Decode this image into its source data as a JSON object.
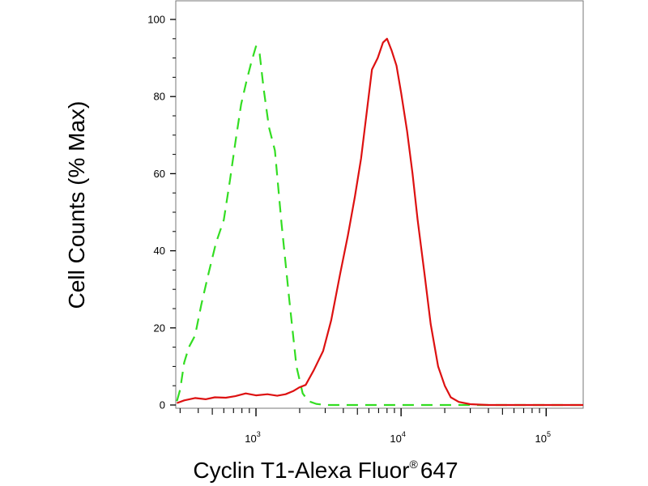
{
  "chart_data": {
    "type": "line",
    "title": "",
    "xlabel": "Cyclin T1-Alexa Fluor",
    "xlabel_mark": "®",
    "xlabel_suffix": "647",
    "ylabel": "Cell Counts (% Max)",
    "xscale": "log",
    "xlim": [
      280,
      180000
    ],
    "ylim": [
      0,
      100
    ],
    "x_ticks": [
      {
        "value": 1000,
        "base": "10",
        "exp": "3"
      },
      {
        "value": 10000,
        "base": "10",
        "exp": "4"
      },
      {
        "value": 100000,
        "base": "10",
        "exp": "5"
      }
    ],
    "y_ticks": [
      0,
      20,
      40,
      60,
      80,
      100
    ],
    "grid": false,
    "legend": "none",
    "series": [
      {
        "color": "#33dd22",
        "style": "dashed",
        "points": [
          [
            285,
            1
          ],
          [
            300,
            4
          ],
          [
            320,
            11
          ],
          [
            345,
            15
          ],
          [
            380,
            18
          ],
          [
            420,
            26
          ],
          [
            470,
            34
          ],
          [
            530,
            42
          ],
          [
            600,
            48
          ],
          [
            660,
            58
          ],
          [
            720,
            68
          ],
          [
            790,
            78
          ],
          [
            860,
            84
          ],
          [
            930,
            89
          ],
          [
            1000,
            93
          ],
          [
            1060,
            91
          ],
          [
            1130,
            82
          ],
          [
            1230,
            72
          ],
          [
            1350,
            66
          ],
          [
            1500,
            47
          ],
          [
            1700,
            27
          ],
          [
            1900,
            10
          ],
          [
            2100,
            3
          ],
          [
            2300,
            1
          ],
          [
            2600,
            0.3
          ],
          [
            3000,
            0
          ],
          [
            180000,
            0
          ]
        ]
      },
      {
        "color": "#dd1111",
        "style": "solid",
        "points": [
          [
            285,
            0.5
          ],
          [
            320,
            1.2
          ],
          [
            380,
            1.8
          ],
          [
            450,
            1.5
          ],
          [
            520,
            2
          ],
          [
            620,
            1.9
          ],
          [
            720,
            2.3
          ],
          [
            850,
            3
          ],
          [
            1000,
            2.5
          ],
          [
            1200,
            2.8
          ],
          [
            1400,
            2.4
          ],
          [
            1600,
            2.8
          ],
          [
            1800,
            3.6
          ],
          [
            2000,
            4.6
          ],
          [
            2200,
            5.2
          ],
          [
            2500,
            9
          ],
          [
            2900,
            14
          ],
          [
            3300,
            22
          ],
          [
            3800,
            34
          ],
          [
            4300,
            44
          ],
          [
            4800,
            54
          ],
          [
            5300,
            64
          ],
          [
            5800,
            76
          ],
          [
            6300,
            87
          ],
          [
            6900,
            90
          ],
          [
            7500,
            94
          ],
          [
            8000,
            95
          ],
          [
            8600,
            92
          ],
          [
            9300,
            88
          ],
          [
            10000,
            81
          ],
          [
            11000,
            71
          ],
          [
            12000,
            60
          ],
          [
            13000,
            48
          ],
          [
            14500,
            34
          ],
          [
            16000,
            21
          ],
          [
            18000,
            10
          ],
          [
            20000,
            5
          ],
          [
            22000,
            2
          ],
          [
            25000,
            0.8
          ],
          [
            30000,
            0.2
          ],
          [
            40000,
            0
          ],
          [
            180000,
            0
          ]
        ]
      }
    ]
  }
}
